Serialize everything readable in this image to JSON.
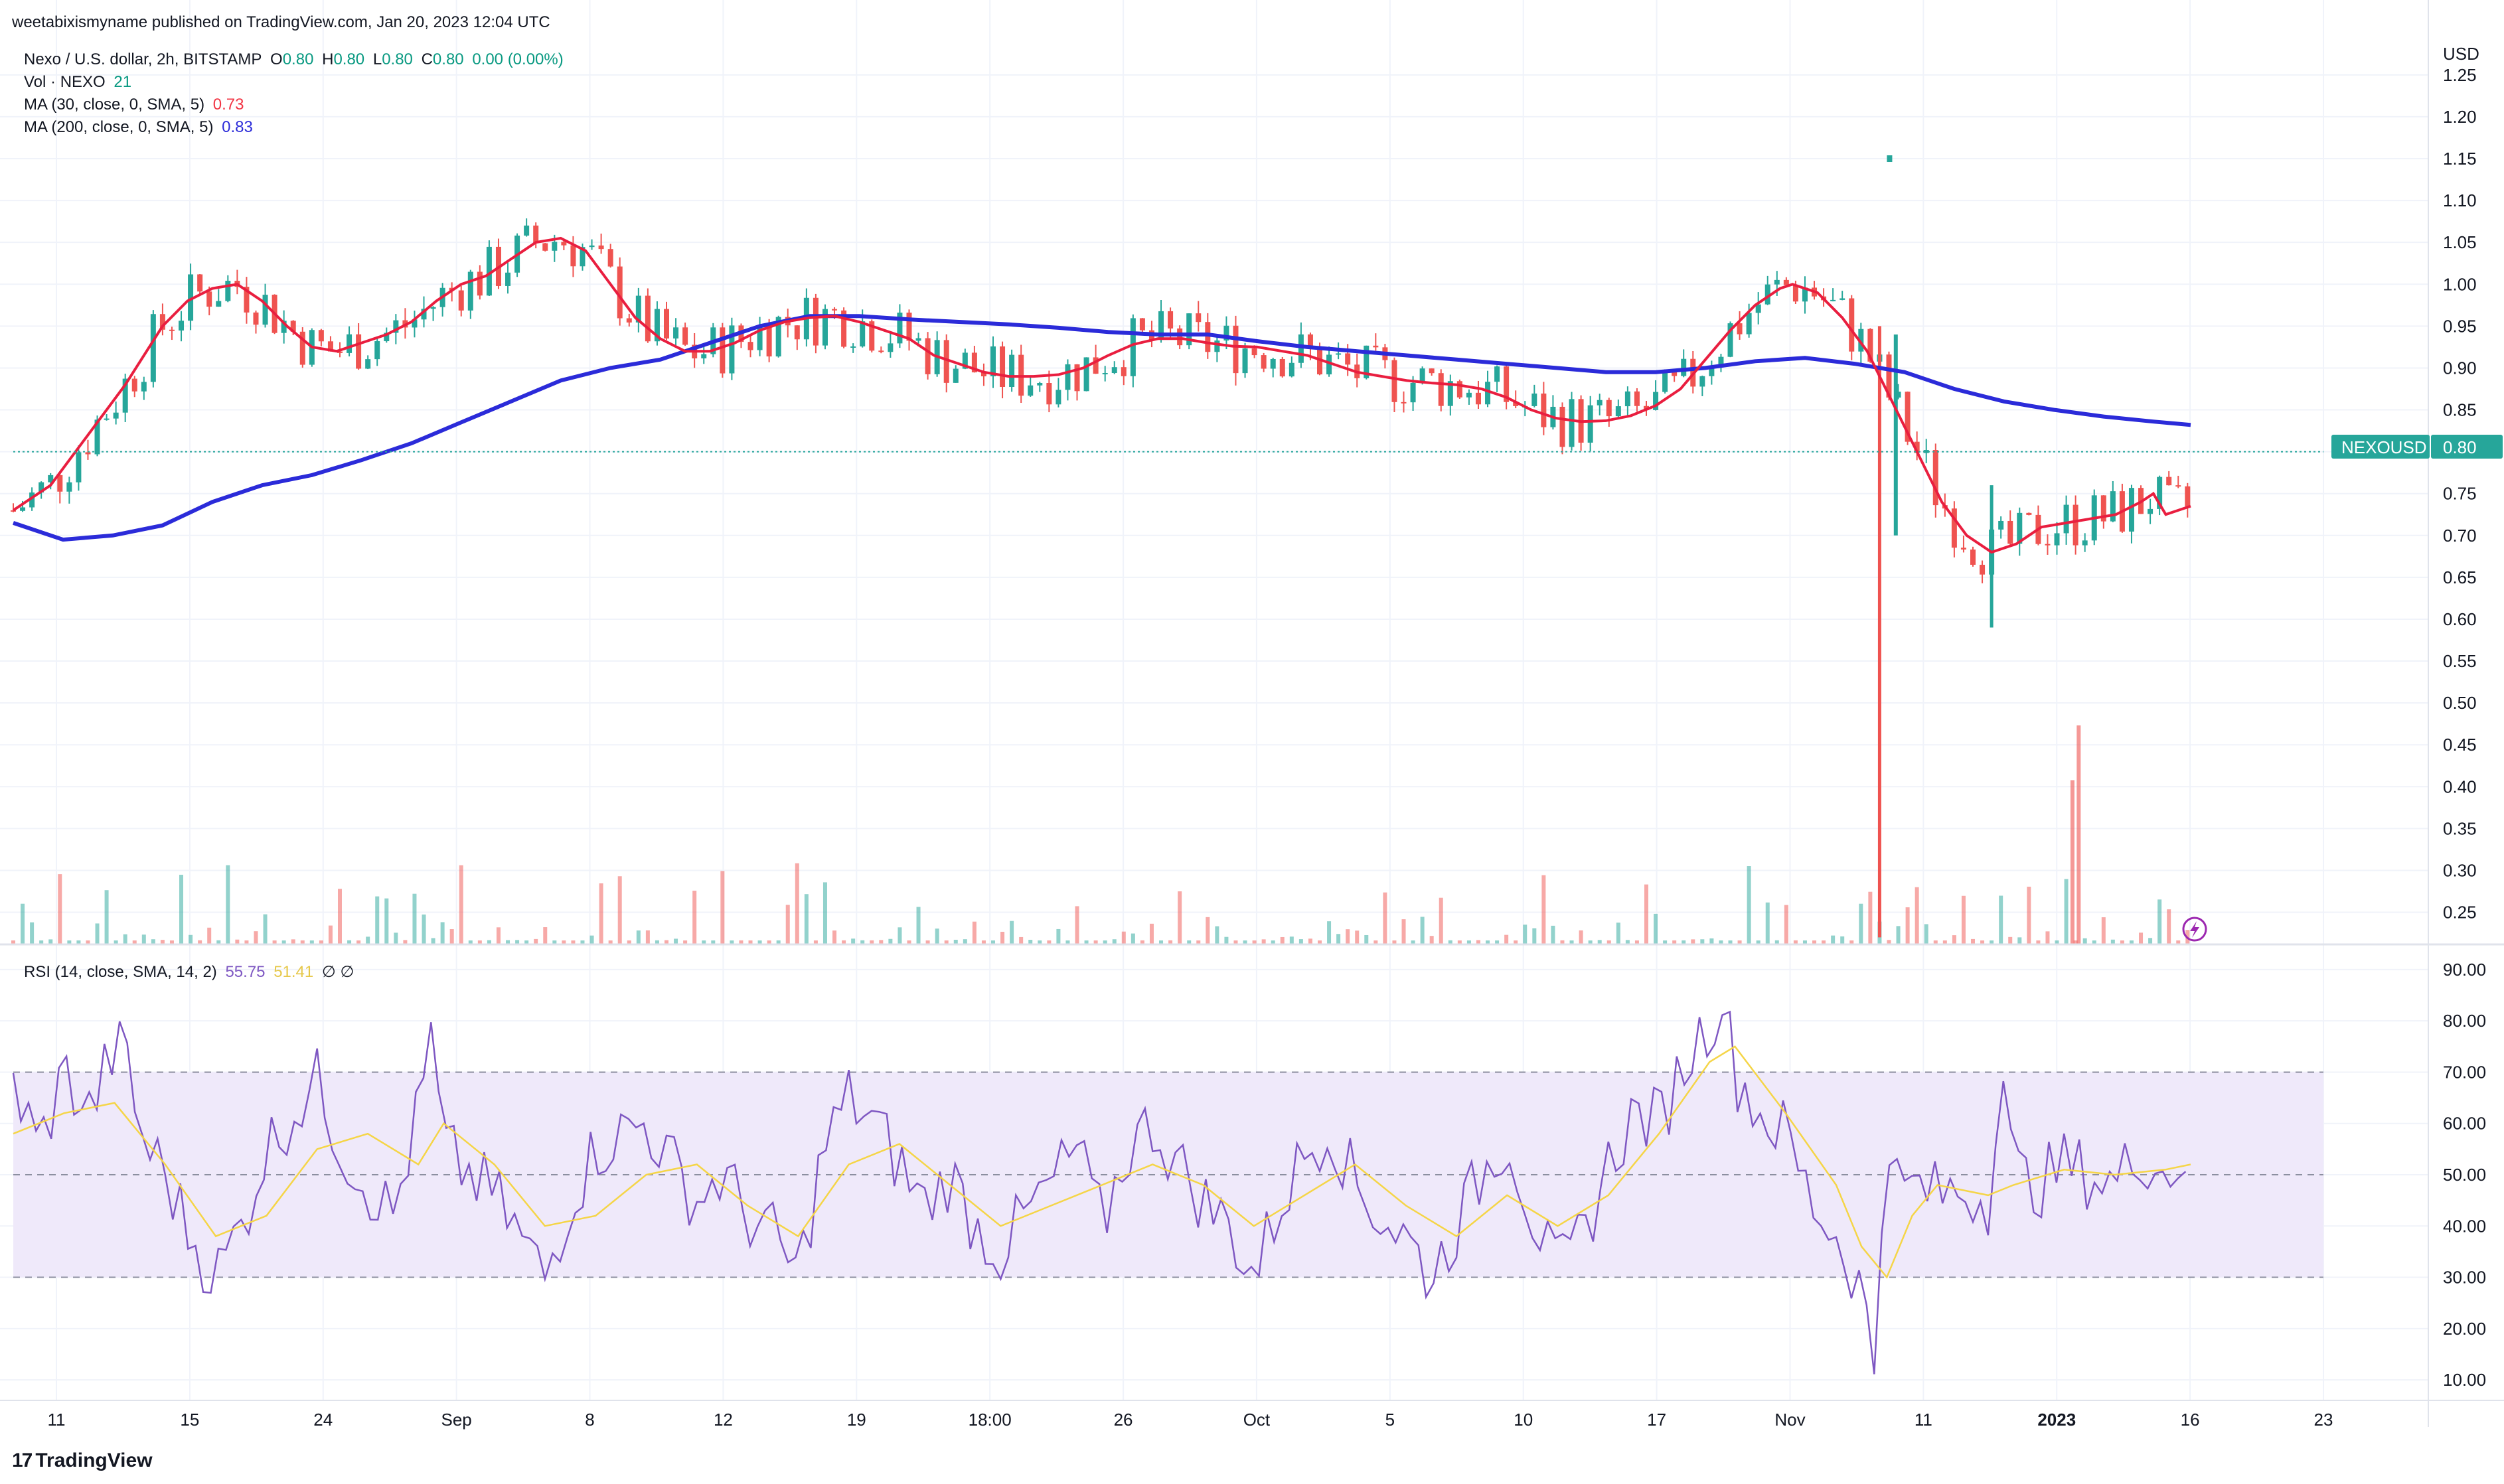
{
  "header": {
    "published_text": "weetabixismyname published on TradingView.com, Jan 20, 2023 12:04 UTC"
  },
  "legend": {
    "title": "Nexo / U.S. dollar, 2h, BITSTAMP",
    "ohlc": {
      "o_label": "O",
      "o": "0.80",
      "h_label": "H",
      "h": "0.80",
      "l_label": "L",
      "l": "0.80",
      "c_label": "C",
      "c": "0.80",
      "change": "0.00 (0.00%)"
    },
    "vol_label": "Vol · NEXO",
    "vol_value": "21",
    "ma30_label": "MA (30, close, 0, SMA, 5)",
    "ma30_value": "0.73",
    "ma200_label": "MA (200, close, 0, SMA, 5)",
    "ma200_value": "0.83",
    "rsi_label": "RSI (14, close, SMA, 14, 2)",
    "rsi_value": "55.75",
    "rsi_ma_value": "51.41",
    "rsi_extra": "∅ ∅"
  },
  "brand": "TradingView",
  "symbol_tag": "NEXOUSD",
  "symbol_price": "0.80",
  "currency": "USD",
  "colors": {
    "up": "#26a69a",
    "down": "#ef5350",
    "ma30": "#e91e3f",
    "ma200": "#2b2bd9",
    "rsi": "#7e57c2",
    "rsi_ma": "#f5d547",
    "rsi_band": "#efe9fa",
    "grid": "#f0f3fa",
    "tag": "#26a69a"
  },
  "chart_data": {
    "type": "line",
    "price_axis": {
      "unit": "USD",
      "ticks": [
        "0.25",
        "0.30",
        "0.35",
        "0.40",
        "0.45",
        "0.50",
        "0.55",
        "0.60",
        "0.65",
        "0.70",
        "0.75",
        "0.80",
        "0.85",
        "0.90",
        "0.95",
        "1.00",
        "1.05",
        "1.10",
        "1.15",
        "1.20",
        "1.25"
      ],
      "range": [
        0.21,
        1.28
      ]
    },
    "rsi_axis": {
      "ticks": [
        "10.00",
        "20.00",
        "30.00",
        "40.00",
        "50.00",
        "60.00",
        "70.00",
        "80.00",
        "90.00"
      ],
      "range": [
        6,
        94
      ],
      "band": [
        30,
        70
      ]
    },
    "time_axis": {
      "labels": [
        "11",
        "15",
        "24",
        "Sep",
        "8",
        "12",
        "19",
        "18:00",
        "26",
        "Oct",
        "5",
        "10",
        "17",
        "Nov",
        "11",
        "2023",
        "16",
        "23"
      ]
    },
    "series": [
      {
        "name": "MA (30, close, 0, SMA, 5)",
        "points": [
          [
            0,
            0.73
          ],
          [
            3,
            0.76
          ],
          [
            6,
            0.82
          ],
          [
            9,
            0.88
          ],
          [
            12,
            0.95
          ],
          [
            14,
            0.98
          ],
          [
            16,
            0.995
          ],
          [
            18,
            1.0
          ],
          [
            20,
            0.98
          ],
          [
            22,
            0.95
          ],
          [
            24,
            0.925
          ],
          [
            26,
            0.92
          ],
          [
            28,
            0.93
          ],
          [
            30,
            0.94
          ],
          [
            32,
            0.955
          ],
          [
            34,
            0.98
          ],
          [
            36,
            1.0
          ],
          [
            38,
            1.01
          ],
          [
            40,
            1.03
          ],
          [
            42,
            1.05
          ],
          [
            44,
            1.055
          ],
          [
            46,
            1.04
          ],
          [
            48,
            1.0
          ],
          [
            50,
            0.96
          ],
          [
            52,
            0.935
          ],
          [
            54,
            0.92
          ],
          [
            56,
            0.92
          ],
          [
            58,
            0.93
          ],
          [
            60,
            0.945
          ],
          [
            62,
            0.955
          ],
          [
            64,
            0.96
          ],
          [
            66,
            0.962
          ],
          [
            68,
            0.955
          ],
          [
            70,
            0.945
          ],
          [
            72,
            0.935
          ],
          [
            74,
            0.915
          ],
          [
            76,
            0.905
          ],
          [
            78,
            0.895
          ],
          [
            80,
            0.89
          ],
          [
            82,
            0.89
          ],
          [
            84,
            0.892
          ],
          [
            86,
            0.9
          ],
          [
            88,
            0.915
          ],
          [
            90,
            0.928
          ],
          [
            92,
            0.935
          ],
          [
            94,
            0.935
          ],
          [
            96,
            0.93
          ],
          [
            98,
            0.926
          ],
          [
            100,
            0.925
          ],
          [
            102,
            0.92
          ],
          [
            104,
            0.915
          ],
          [
            106,
            0.905
          ],
          [
            108,
            0.895
          ],
          [
            110,
            0.89
          ],
          [
            112,
            0.885
          ],
          [
            114,
            0.882
          ],
          [
            116,
            0.88
          ],
          [
            118,
            0.875
          ],
          [
            120,
            0.865
          ],
          [
            122,
            0.85
          ],
          [
            124,
            0.84
          ],
          [
            126,
            0.836
          ],
          [
            128,
            0.837
          ],
          [
            130,
            0.843
          ],
          [
            132,
            0.855
          ],
          [
            134,
            0.875
          ],
          [
            136,
            0.91
          ],
          [
            138,
            0.945
          ],
          [
            140,
            0.975
          ],
          [
            142,
            0.995
          ],
          [
            143,
            1.0
          ],
          [
            145,
            0.99
          ],
          [
            147,
            0.96
          ],
          [
            149,
            0.92
          ],
          [
            151,
            0.86
          ],
          [
            153,
            0.8
          ],
          [
            155,
            0.74
          ],
          [
            157,
            0.7
          ],
          [
            159,
            0.68
          ],
          [
            161,
            0.69
          ],
          [
            163,
            0.71
          ],
          [
            165,
            0.715
          ],
          [
            167,
            0.72
          ],
          [
            169,
            0.725
          ],
          [
            171,
            0.74
          ],
          [
            172,
            0.75
          ],
          [
            173,
            0.725
          ],
          [
            174,
            0.73
          ],
          [
            175,
            0.735
          ]
        ]
      },
      {
        "name": "MA (200, close, 0, SMA, 5)",
        "points": [
          [
            0,
            0.715
          ],
          [
            4,
            0.695
          ],
          [
            8,
            0.7
          ],
          [
            12,
            0.712
          ],
          [
            16,
            0.74
          ],
          [
            20,
            0.76
          ],
          [
            24,
            0.772
          ],
          [
            28,
            0.79
          ],
          [
            32,
            0.81
          ],
          [
            36,
            0.835
          ],
          [
            40,
            0.86
          ],
          [
            44,
            0.885
          ],
          [
            48,
            0.9
          ],
          [
            52,
            0.91
          ],
          [
            56,
            0.93
          ],
          [
            60,
            0.95
          ],
          [
            64,
            0.962
          ],
          [
            68,
            0.962
          ],
          [
            72,
            0.958
          ],
          [
            76,
            0.955
          ],
          [
            80,
            0.952
          ],
          [
            84,
            0.948
          ],
          [
            88,
            0.943
          ],
          [
            92,
            0.94
          ],
          [
            96,
            0.94
          ],
          [
            100,
            0.932
          ],
          [
            104,
            0.925
          ],
          [
            108,
            0.92
          ],
          [
            112,
            0.915
          ],
          [
            116,
            0.91
          ],
          [
            120,
            0.905
          ],
          [
            124,
            0.9
          ],
          [
            128,
            0.895
          ],
          [
            132,
            0.895
          ],
          [
            136,
            0.9
          ],
          [
            140,
            0.908
          ],
          [
            144,
            0.912
          ],
          [
            148,
            0.905
          ],
          [
            152,
            0.895
          ],
          [
            156,
            0.875
          ],
          [
            160,
            0.86
          ],
          [
            164,
            0.85
          ],
          [
            168,
            0.842
          ],
          [
            172,
            0.836
          ],
          [
            175,
            0.832
          ]
        ]
      },
      {
        "name": "RSI (14, close, SMA, 14, 2)",
        "points": [
          [
            0,
            68
          ],
          [
            2,
            55
          ],
          [
            4,
            70
          ],
          [
            6,
            62
          ],
          [
            8,
            75
          ],
          [
            9,
            72
          ],
          [
            10,
            58
          ],
          [
            12,
            50
          ],
          [
            14,
            38
          ],
          [
            16,
            30
          ],
          [
            18,
            40
          ],
          [
            20,
            55
          ],
          [
            22,
            62
          ],
          [
            24,
            68
          ],
          [
            26,
            55
          ],
          [
            28,
            48
          ],
          [
            30,
            42
          ],
          [
            32,
            62
          ],
          [
            33,
            76
          ],
          [
            34,
            55
          ],
          [
            36,
            50
          ],
          [
            38,
            46
          ],
          [
            40,
            38
          ],
          [
            42,
            30
          ],
          [
            44,
            45
          ],
          [
            46,
            55
          ],
          [
            48,
            58
          ],
          [
            50,
            60
          ],
          [
            52,
            52
          ],
          [
            54,
            45
          ],
          [
            56,
            50
          ],
          [
            58,
            42
          ],
          [
            60,
            38
          ],
          [
            62,
            30
          ],
          [
            64,
            55
          ],
          [
            66,
            65
          ],
          [
            68,
            60
          ],
          [
            70,
            52
          ],
          [
            72,
            44
          ],
          [
            74,
            50
          ],
          [
            76,
            40
          ],
          [
            78,
            35
          ],
          [
            80,
            42
          ],
          [
            82,
            48
          ],
          [
            84,
            55
          ],
          [
            86,
            40
          ],
          [
            88,
            55
          ],
          [
            90,
            60
          ],
          [
            92,
            52
          ],
          [
            94,
            45
          ],
          [
            96,
            40
          ],
          [
            98,
            30
          ],
          [
            100,
            44
          ],
          [
            102,
            54
          ],
          [
            104,
            60
          ],
          [
            106,
            48
          ],
          [
            108,
            42
          ],
          [
            110,
            38
          ],
          [
            112,
            30
          ],
          [
            114,
            40
          ],
          [
            116,
            50
          ],
          [
            118,
            58
          ],
          [
            120,
            42
          ],
          [
            122,
            30
          ],
          [
            124,
            38
          ],
          [
            126,
            52
          ],
          [
            128,
            62
          ],
          [
            130,
            60
          ],
          [
            132,
            72
          ],
          [
            134,
            80
          ],
          [
            135,
            85
          ],
          [
            136,
            70
          ],
          [
            138,
            62
          ],
          [
            140,
            58
          ],
          [
            142,
            45
          ],
          [
            144,
            38
          ],
          [
            146,
            28
          ],
          [
            147,
            12
          ],
          [
            148,
            62
          ],
          [
            149,
            45
          ],
          [
            150,
            48
          ],
          [
            152,
            46
          ],
          [
            154,
            47
          ],
          [
            156,
            45
          ],
          [
            157,
            74
          ],
          [
            158,
            50
          ],
          [
            160,
            48
          ],
          [
            162,
            52
          ],
          [
            164,
            50
          ],
          [
            166,
            48
          ],
          [
            168,
            55
          ],
          [
            170,
            50
          ],
          [
            172,
            55
          ]
        ]
      },
      {
        "name": "RSI SMA",
        "points": [
          [
            0,
            58
          ],
          [
            4,
            62
          ],
          [
            8,
            64
          ],
          [
            12,
            52
          ],
          [
            16,
            38
          ],
          [
            20,
            42
          ],
          [
            24,
            55
          ],
          [
            28,
            58
          ],
          [
            32,
            52
          ],
          [
            34,
            60
          ],
          [
            38,
            52
          ],
          [
            42,
            40
          ],
          [
            46,
            42
          ],
          [
            50,
            50
          ],
          [
            54,
            52
          ],
          [
            58,
            44
          ],
          [
            62,
            38
          ],
          [
            66,
            52
          ],
          [
            70,
            56
          ],
          [
            74,
            48
          ],
          [
            78,
            40
          ],
          [
            82,
            44
          ],
          [
            86,
            48
          ],
          [
            90,
            52
          ],
          [
            94,
            48
          ],
          [
            98,
            40
          ],
          [
            102,
            46
          ],
          [
            106,
            52
          ],
          [
            110,
            44
          ],
          [
            114,
            38
          ],
          [
            118,
            46
          ],
          [
            122,
            40
          ],
          [
            126,
            46
          ],
          [
            130,
            58
          ],
          [
            134,
            72
          ],
          [
            136,
            75
          ],
          [
            140,
            62
          ],
          [
            144,
            48
          ],
          [
            146,
            36
          ],
          [
            148,
            30
          ],
          [
            150,
            42
          ],
          [
            152,
            48
          ],
          [
            156,
            46
          ],
          [
            158,
            48
          ],
          [
            162,
            51
          ],
          [
            166,
            50
          ],
          [
            170,
            51
          ],
          [
            172,
            52
          ]
        ]
      }
    ],
    "candles_summary": "OHLC candles and volume bars for NEXOUSD 2h",
    "spike_low": 0.22,
    "spike_high": 1.15
  }
}
